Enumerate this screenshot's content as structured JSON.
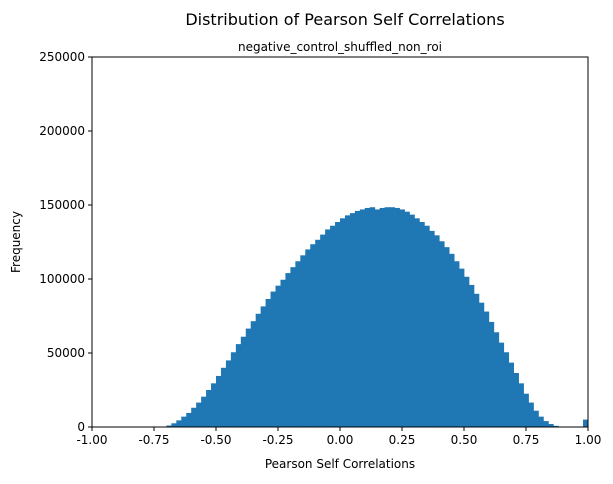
{
  "chart_data": {
    "type": "bar",
    "title": "Distribution of Pearson Self Correlations",
    "subtitle": "negative_control_shuffled_non_roi",
    "xlabel": "Pearson Self Correlations",
    "ylabel": "Frequency",
    "xlim": [
      -1.0,
      1.0
    ],
    "ylim": [
      0,
      250000
    ],
    "xticks": [
      "-1.00",
      "-0.75",
      "-0.50",
      "-0.25",
      "0.00",
      "0.25",
      "0.50",
      "0.75",
      "1.00"
    ],
    "yticks": [
      "0",
      "50000",
      "100000",
      "150000",
      "200000",
      "250000"
    ],
    "bar_color": "#1f77b4",
    "grid": false,
    "bin_start": -1.0,
    "bin_width": 0.02,
    "values": [
      0,
      0,
      0,
      0,
      0,
      0,
      0,
      0,
      0,
      0,
      0,
      0,
      0,
      0,
      0,
      1000,
      2500,
      4500,
      7000,
      9500,
      13000,
      16500,
      20500,
      25000,
      29500,
      34500,
      40000,
      45000,
      50500,
      56000,
      61000,
      66500,
      71500,
      76500,
      81500,
      86500,
      91500,
      95500,
      99500,
      104000,
      108000,
      112000,
      116000,
      120000,
      123500,
      126500,
      130000,
      133500,
      136000,
      138500,
      141000,
      143000,
      144500,
      146000,
      147000,
      148000,
      148500,
      147000,
      148000,
      148500,
      148500,
      148000,
      147000,
      145500,
      143500,
      141000,
      138500,
      136000,
      132500,
      129500,
      125500,
      121500,
      117000,
      112000,
      107000,
      101500,
      96000,
      90000,
      84000,
      78000,
      71000,
      64000,
      57000,
      50500,
      43500,
      36500,
      29500,
      22500,
      16500,
      11000,
      7000,
      4000,
      2000,
      800,
      300,
      0,
      0,
      0,
      0,
      5000
    ]
  }
}
